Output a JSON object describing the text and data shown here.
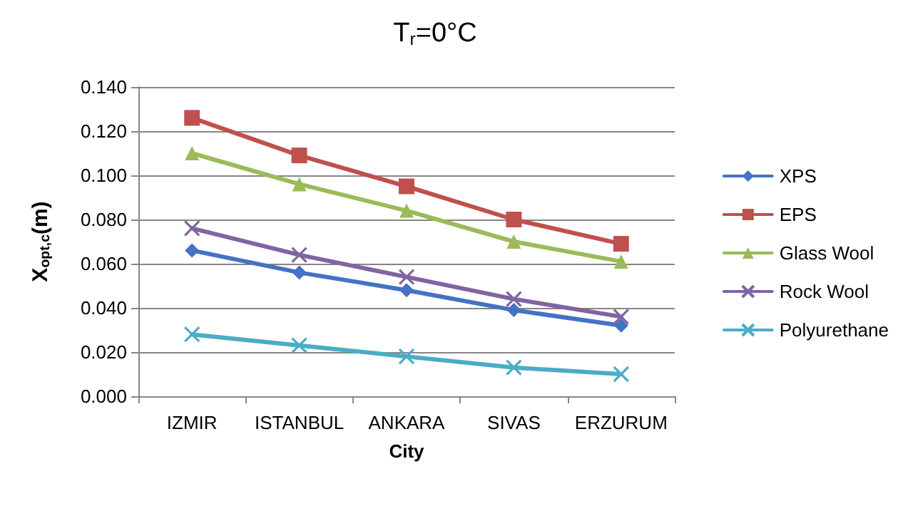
{
  "chart_data": {
    "type": "line",
    "title": "T$_{r}$=0°C",
    "xlabel": "City",
    "ylabel": "X$_{opt,c}$(m)",
    "categories": [
      "IZMIR",
      "ISTANBUL",
      "ANKARA",
      "SIVAS",
      "ERZURUM"
    ],
    "series": [
      {
        "name": "XPS",
        "color": "#4472c4",
        "marker": "diamond",
        "values": [
          0.066,
          0.056,
          0.048,
          0.039,
          0.032
        ]
      },
      {
        "name": "EPS",
        "color": "#c0504d",
        "marker": "square",
        "values": [
          0.126,
          0.109,
          0.095,
          0.08,
          0.069
        ]
      },
      {
        "name": "Glass Wool",
        "color": "#9bbb59",
        "marker": "triangle",
        "values": [
          0.11,
          0.096,
          0.084,
          0.07,
          0.061
        ]
      },
      {
        "name": "Rock Wool",
        "color": "#8064a2",
        "marker": "cross",
        "values": [
          0.076,
          0.064,
          0.054,
          0.044,
          0.036
        ]
      },
      {
        "name": "Polyurethane",
        "color": "#4bacc6",
        "marker": "cross",
        "values": [
          0.028,
          0.023,
          0.018,
          0.013,
          0.01
        ]
      }
    ],
    "ylim": [
      0,
      0.14
    ],
    "yticks": [
      {
        "value": 0,
        "label": "0.000"
      },
      {
        "value": 0.02,
        "label": "0.020"
      },
      {
        "value": 0.04,
        "label": "0.040"
      },
      {
        "value": 0.06,
        "label": "0.060"
      },
      {
        "value": 0.08,
        "label": "0.080"
      },
      {
        "value": 0.1,
        "label": "0.100"
      },
      {
        "value": 0.12,
        "label": "0.120"
      },
      {
        "value": 0.14,
        "label": "0.140"
      }
    ],
    "grid": "y",
    "legend": "right",
    "line_style": "solid"
  }
}
